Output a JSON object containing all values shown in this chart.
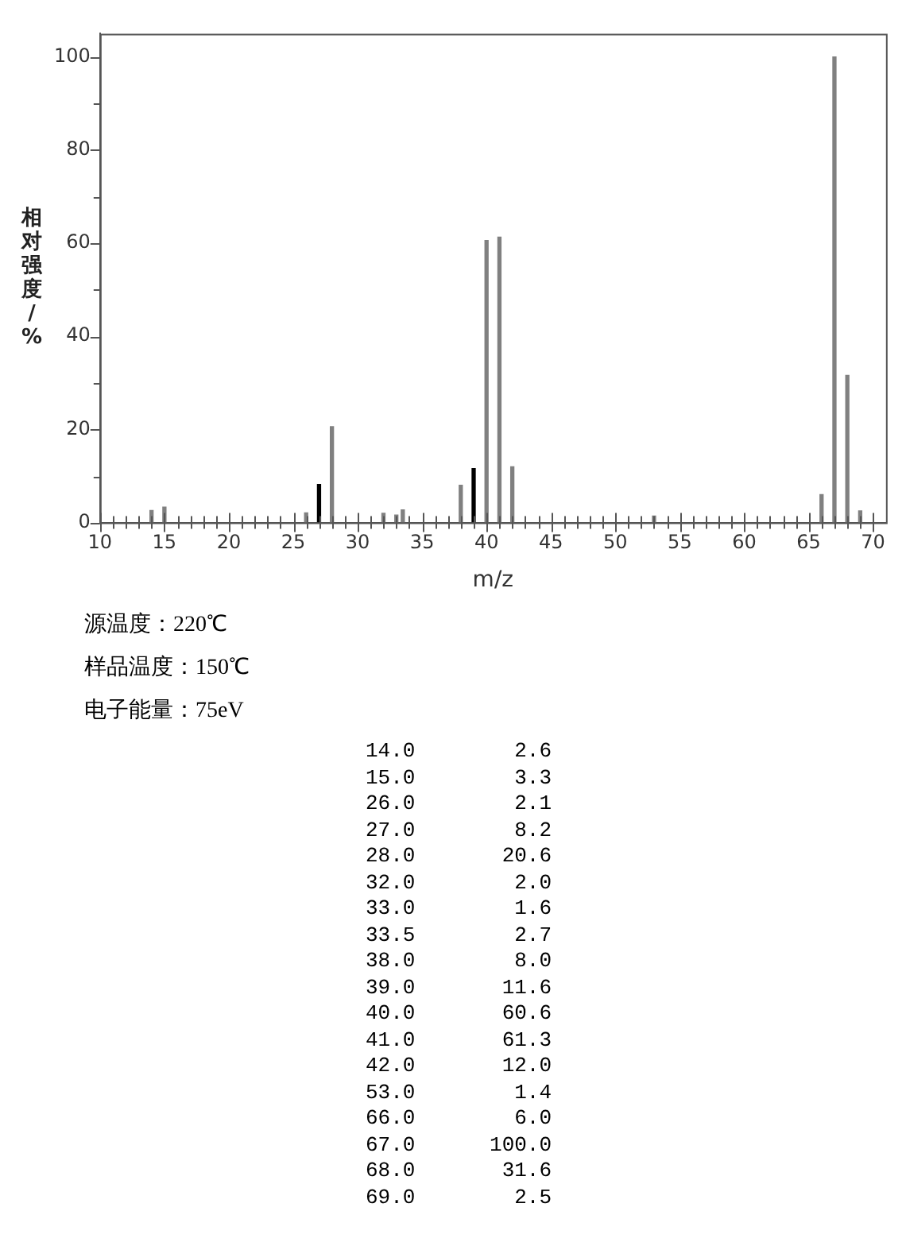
{
  "chart_data": {
    "type": "bar",
    "xlabel": "m/z",
    "ylabel": "相对强度/%",
    "x": [
      14,
      15,
      26,
      27,
      28,
      32,
      33,
      33.5,
      38,
      39,
      40,
      41,
      42,
      53,
      66,
      67,
      68,
      69
    ],
    "values": [
      2.6,
      3.3,
      2.1,
      8.2,
      20.6,
      2.0,
      1.6,
      2.7,
      8.0,
      11.6,
      60.6,
      61.3,
      12.0,
      1.4,
      6.0,
      100.0,
      31.6,
      2.5
    ],
    "colors": [
      "#808080",
      "#808080",
      "#808080",
      "#000000",
      "#808080",
      "#808080",
      "#808080",
      "#808080",
      "#808080",
      "#000000",
      "#808080",
      "#808080",
      "#808080",
      "#808080",
      "#808080",
      "#808080",
      "#808080",
      "#808080"
    ],
    "xlim": [
      10,
      71
    ],
    "xticks": [
      10,
      {
        "value": 11,
        "label": null
      },
      {
        "value": 12,
        "label": null
      },
      {
        "value": 13,
        "label": null
      },
      {
        "value": 14,
        "label": null
      },
      15,
      {
        "value": 16,
        "label": null
      },
      {
        "value": 17,
        "label": null
      },
      {
        "value": 18,
        "label": null
      },
      {
        "value": 19,
        "label": null
      },
      20,
      {
        "value": 21,
        "label": null
      },
      {
        "value": 22,
        "label": null
      },
      {
        "value": 23,
        "label": null
      },
      {
        "value": 24,
        "label": null
      },
      25,
      {
        "value": 26,
        "label": null
      },
      {
        "value": 27,
        "label": null
      },
      {
        "value": 28,
        "label": null
      },
      {
        "value": 29,
        "label": null
      },
      30,
      {
        "value": 31,
        "label": null
      },
      {
        "value": 32,
        "label": null
      },
      {
        "value": 33,
        "label": null
      },
      {
        "value": 34,
        "label": null
      },
      35,
      {
        "value": 36,
        "label": null
      },
      {
        "value": 37,
        "label": null
      },
      {
        "value": 38,
        "label": null
      },
      {
        "value": 39,
        "label": null
      },
      40,
      {
        "value": 41,
        "label": null
      },
      {
        "value": 42,
        "label": null
      },
      {
        "value": 43,
        "label": null
      },
      {
        "value": 44,
        "label": null
      },
      45,
      {
        "value": 46,
        "label": null
      },
      {
        "value": 47,
        "label": null
      },
      {
        "value": 48,
        "label": null
      },
      {
        "value": 49,
        "label": null
      },
      50,
      {
        "value": 51,
        "label": null
      },
      {
        "value": 52,
        "label": null
      },
      {
        "value": 53,
        "label": null
      },
      {
        "value": 54,
        "label": null
      },
      55,
      {
        "value": 56,
        "label": null
      },
      {
        "value": 57,
        "label": null
      },
      {
        "value": 58,
        "label": null
      },
      {
        "value": 59,
        "label": null
      },
      60,
      {
        "value": 61,
        "label": null
      },
      {
        "value": 62,
        "label": null
      },
      {
        "value": 63,
        "label": null
      },
      {
        "value": 64,
        "label": null
      },
      65,
      {
        "value": 66,
        "label": null
      },
      {
        "value": 67,
        "label": null
      },
      {
        "value": 68,
        "label": null
      },
      {
        "value": 69,
        "label": null
      },
      70
    ],
    "ylim": [
      0,
      105
    ],
    "yticks": [
      0,
      {
        "value": 10,
        "label": null
      },
      20,
      {
        "value": 30,
        "label": null
      },
      40,
      {
        "value": 50,
        "label": null
      },
      60,
      {
        "value": 70,
        "label": null
      },
      80,
      {
        "value": 90,
        "label": null
      },
      100
    ],
    "grid": false,
    "legend": false,
    "annotations": [
      "源温度：220℃",
      "样品温度：150℃",
      "电子能量：75eV",
      "14.0        2.6",
      "15.0        3.3",
      "26.0        2.1",
      "27.0        8.2",
      "28.0       20.6",
      "32.0        2.0",
      "33.0        1.6",
      "33.5        2.7",
      "38.0        8.0",
      "39.0       11.6",
      "40.0       60.6",
      "41.0       61.3",
      "42.0       12.0",
      "53.0        1.4",
      "66.0        6.0",
      "67.0      100.0",
      "68.0       31.6",
      "69.0        2.5"
    ]
  }
}
